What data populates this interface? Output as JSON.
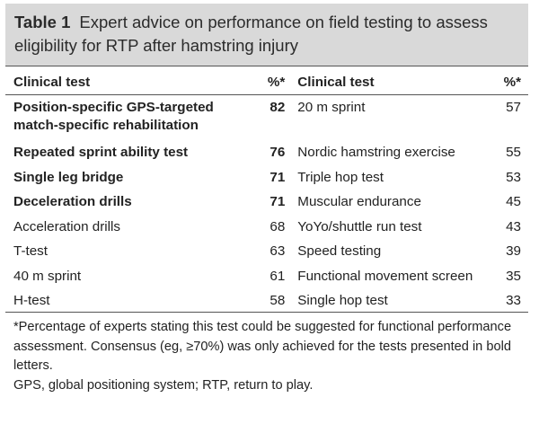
{
  "table": {
    "label": "Table 1",
    "title": "Expert advice on performance on field testing to assess eligibility for RTP after hamstring injury",
    "headers": [
      "Clinical test",
      "%*",
      "Clinical test",
      "%*"
    ],
    "rows": [
      {
        "test1": "Position-specific GPS-targeted match-specific rehabilitation",
        "pct1": "82",
        "bold1": true,
        "test2": "20 m sprint",
        "pct2": "57"
      },
      {
        "test1": "Repeated sprint ability test",
        "pct1": "76",
        "bold1": true,
        "test2": "Nordic hamstring exercise",
        "pct2": "55"
      },
      {
        "test1": "Single leg bridge",
        "pct1": "71",
        "bold1": true,
        "test2": "Triple hop test",
        "pct2": "53"
      },
      {
        "test1": "Deceleration drills",
        "pct1": "71",
        "bold1": true,
        "test2": "Muscular endurance",
        "pct2": "45"
      },
      {
        "test1": "Acceleration drills",
        "pct1": "68",
        "bold1": false,
        "test2": "YoYo/shuttle run test",
        "pct2": "43"
      },
      {
        "test1": "T-test",
        "pct1": "63",
        "bold1": false,
        "test2": "Speed testing",
        "pct2": "39"
      },
      {
        "test1": "40 m sprint",
        "pct1": "61",
        "bold1": false,
        "test2": "Functional movement screen",
        "pct2": "35"
      },
      {
        "test1": "H-test",
        "pct1": "58",
        "bold1": false,
        "test2": "Single hop test",
        "pct2": "33"
      }
    ],
    "footnotes": [
      "*Percentage of experts stating this test could be suggested for functional performance assessment. Consensus (eg, ≥70%) was only achieved for the tests presented in bold letters.",
      "GPS, global positioning system; RTP, return to play."
    ]
  }
}
